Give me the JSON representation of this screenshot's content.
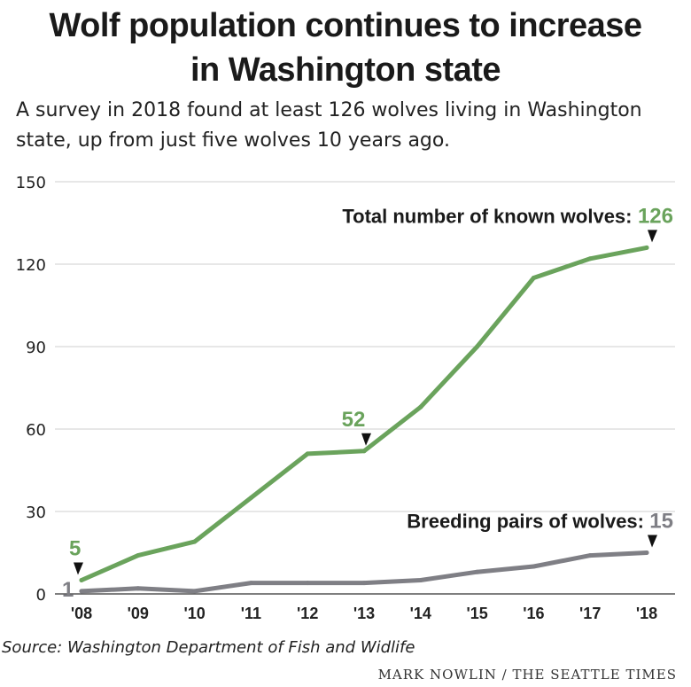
{
  "header": {
    "title_line1": "Wolf population continues to increase",
    "title_line2": "in Washington state",
    "subtitle_line1": "A survey in 2018 found at least 126 wolves living in Washington",
    "subtitle_line2": "state, up from just five wolves 10 years ago."
  },
  "footer": {
    "source": "Source: Washington Department of Fish and Widlife",
    "credit": "MARK NOWLIN / THE SEATTLE TIMES"
  },
  "chart_data": {
    "type": "line",
    "title": "Wolf population continues to increase in Washington state",
    "x": [
      "'08",
      "'09",
      "'10",
      "'11",
      "'12",
      "'13",
      "'14",
      "'15",
      "'16",
      "'17",
      "'18"
    ],
    "ylim": [
      0,
      150
    ],
    "yticks": [
      0,
      30,
      60,
      90,
      120,
      150
    ],
    "grid": true,
    "series": [
      {
        "name": "Total number of known wolves",
        "color": "#6aa35c",
        "values": [
          5,
          14,
          19,
          35,
          51,
          52,
          68,
          90,
          115,
          122,
          126
        ]
      },
      {
        "name": "Breeding pairs of wolves",
        "color": "#7f7f85",
        "values": [
          1,
          2,
          1,
          4,
          4,
          4,
          5,
          8,
          10,
          14,
          15
        ]
      }
    ],
    "annotations": [
      {
        "series": 0,
        "index": 0,
        "text": "5",
        "color": "#6aa35c"
      },
      {
        "series": 0,
        "index": 5,
        "text": "52",
        "color": "#6aa35c"
      },
      {
        "series": 0,
        "index": 10,
        "text": "126",
        "color": "#6aa35c",
        "label": "Total number of known wolves:"
      },
      {
        "series": 1,
        "index": 0,
        "text": "1",
        "color": "#7f7f85"
      },
      {
        "series": 1,
        "index": 10,
        "text": "15",
        "color": "#7f7f85",
        "label": "Breeding pairs of wolves:"
      }
    ]
  }
}
